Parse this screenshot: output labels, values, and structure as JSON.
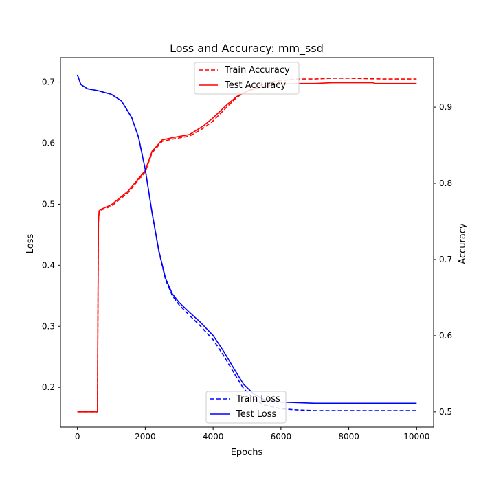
{
  "chart_data": {
    "type": "line",
    "title": "Loss and Accuracy: mm_ssd",
    "xlabel": "Epochs",
    "ylabel_left": "Loss",
    "ylabel_right": "Accuracy",
    "xlim": [
      -500,
      10500
    ],
    "ylim_left": [
      0.135,
      0.74
    ],
    "ylim_right": [
      0.48,
      0.965
    ],
    "x_ticks": [
      0,
      2000,
      4000,
      6000,
      8000,
      10000
    ],
    "y_ticks_left": [
      0.2,
      0.3,
      0.4,
      0.5,
      0.6,
      0.7
    ],
    "y_ticks_right": [
      0.5,
      0.6,
      0.7,
      0.8,
      0.9
    ],
    "grid": false,
    "legends": [
      {
        "position": "upper center",
        "entries": [
          "Train Accuracy",
          "Test Accuracy"
        ]
      },
      {
        "position": "lower center",
        "entries": [
          "Train Loss",
          "Test Loss"
        ]
      }
    ],
    "series": [
      {
        "name": "Train Accuracy",
        "axis": "right",
        "color": "#ff0000",
        "dash": "dashed",
        "x": [
          0,
          590,
          600,
          620,
          640,
          700,
          1000,
          1500,
          2000,
          2200,
          2500,
          2800,
          3300,
          3700,
          4000,
          4400,
          4700,
          5000,
          5300,
          5600,
          6000,
          6500,
          7000,
          7500,
          8000,
          9000,
          10000
        ],
        "y": [
          0.5,
          0.5,
          0.6,
          0.75,
          0.763,
          0.765,
          0.77,
          0.788,
          0.815,
          0.84,
          0.855,
          0.858,
          0.862,
          0.872,
          0.882,
          0.9,
          0.913,
          0.921,
          0.927,
          0.932,
          0.935,
          0.937,
          0.937,
          0.938,
          0.938,
          0.937,
          0.937
        ]
      },
      {
        "name": "Test Accuracy",
        "axis": "right",
        "color": "#ff0000",
        "dash": "solid",
        "x": [
          0,
          590,
          600,
          620,
          640,
          700,
          1000,
          1500,
          2000,
          2200,
          2500,
          2800,
          3300,
          3700,
          4000,
          4400,
          4700,
          5000,
          5300,
          5600,
          6000,
          6500,
          7000,
          7500,
          8000,
          8700,
          8800,
          10000
        ],
        "y": [
          0.5,
          0.5,
          0.6,
          0.75,
          0.764,
          0.766,
          0.772,
          0.79,
          0.817,
          0.842,
          0.857,
          0.86,
          0.864,
          0.875,
          0.886,
          0.903,
          0.914,
          0.921,
          0.925,
          0.928,
          0.93,
          0.931,
          0.931,
          0.932,
          0.932,
          0.932,
          0.931,
          0.931
        ]
      },
      {
        "name": "Train Loss",
        "axis": "left",
        "color": "#0000ff",
        "dash": "dashed",
        "x": [
          0,
          100,
          300,
          600,
          1000,
          1300,
          1600,
          1800,
          2000,
          2200,
          2400,
          2600,
          2800,
          3000,
          3300,
          3600,
          4000,
          4300,
          4600,
          4900,
          5200,
          5500,
          6000,
          6500,
          7000,
          8000,
          9000,
          10000
        ],
        "y": [
          0.712,
          0.696,
          0.689,
          0.686,
          0.68,
          0.669,
          0.642,
          0.61,
          0.557,
          0.486,
          0.423,
          0.376,
          0.35,
          0.335,
          0.318,
          0.302,
          0.278,
          0.253,
          0.225,
          0.198,
          0.181,
          0.171,
          0.165,
          0.163,
          0.162,
          0.162,
          0.162,
          0.162
        ]
      },
      {
        "name": "Test Loss",
        "axis": "left",
        "color": "#0000ff",
        "dash": "solid",
        "x": [
          0,
          100,
          300,
          600,
          1000,
          1300,
          1600,
          1800,
          2000,
          2200,
          2400,
          2600,
          2800,
          3000,
          3300,
          3600,
          4000,
          4300,
          4600,
          4900,
          5200,
          5500,
          6000,
          6500,
          7000,
          8000,
          9000,
          10000
        ],
        "y": [
          0.712,
          0.696,
          0.689,
          0.686,
          0.68,
          0.669,
          0.642,
          0.61,
          0.557,
          0.486,
          0.424,
          0.378,
          0.353,
          0.339,
          0.323,
          0.308,
          0.285,
          0.26,
          0.232,
          0.205,
          0.189,
          0.18,
          0.176,
          0.175,
          0.174,
          0.174,
          0.174,
          0.174
        ]
      }
    ]
  }
}
